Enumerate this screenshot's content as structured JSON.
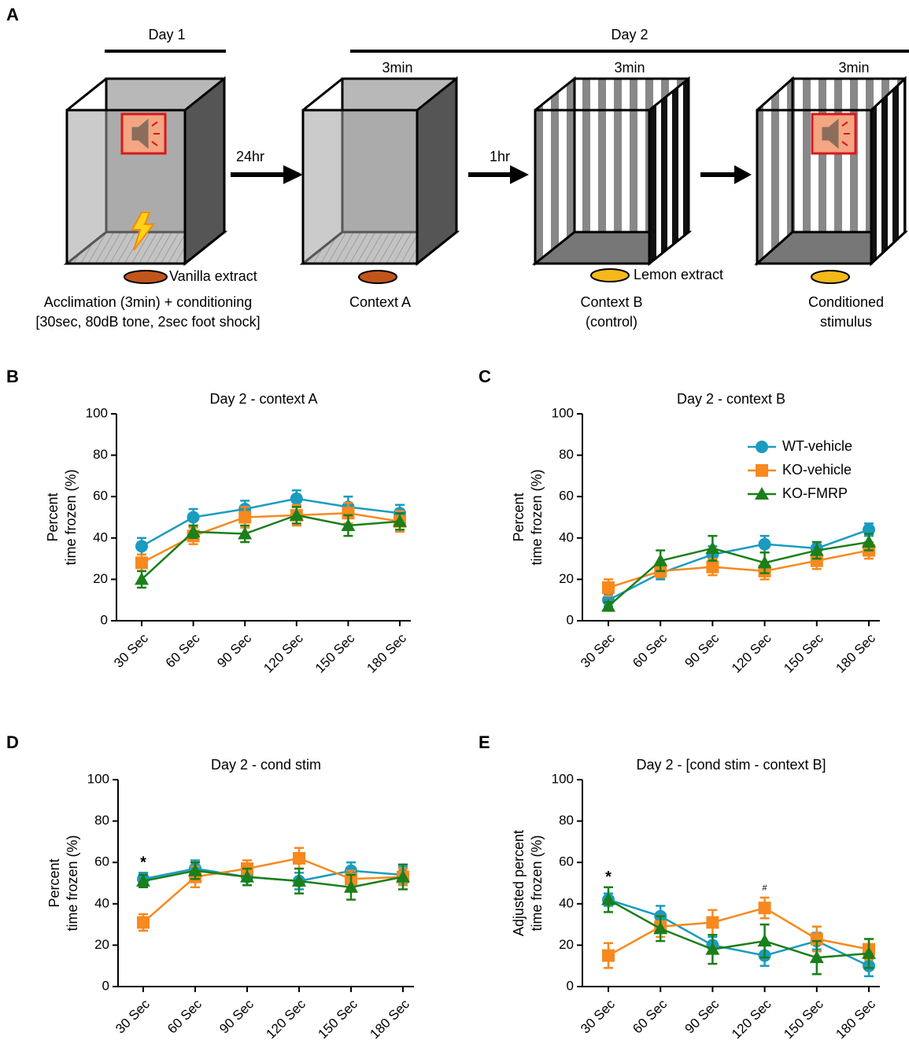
{
  "diagram": {
    "panel": "A",
    "day1": "Day 1",
    "day2": "Day 2",
    "durations": [
      "3min",
      "3min",
      "3min"
    ],
    "intervals": [
      "24hr",
      "1hr"
    ],
    "odors": [
      "Vanilla extract",
      "Lemon extract"
    ],
    "captions": [
      [
        "Acclimation (3min) + conditioning",
        "[30sec, 80dB tone, 2sec foot shock]"
      ],
      [
        "Context A"
      ],
      [
        "Context B",
        "(control)"
      ],
      [
        "Conditioned",
        "stimulus"
      ]
    ]
  },
  "chart_data": [
    {
      "panel": "B",
      "type": "line",
      "title": "Day 2 - context A",
      "ylabel": [
        "Percent",
        "time frozen (%)"
      ],
      "categories": [
        "30 Sec",
        "60 Sec",
        "90 Sec",
        "120 Sec",
        "150 Sec",
        "180 Sec"
      ],
      "ylim": [
        0,
        100
      ],
      "yticks": [
        0,
        20,
        40,
        60,
        80,
        100
      ],
      "series": [
        {
          "color": "#1a9bc0",
          "marker": "circle",
          "values": [
            36,
            50,
            54,
            59,
            55,
            52
          ],
          "errors": [
            4,
            4,
            4,
            4,
            5,
            4
          ]
        },
        {
          "color": "#f7891e",
          "marker": "square",
          "values": [
            28,
            41,
            50,
            51,
            52,
            48
          ],
          "errors": [
            4,
            4,
            5,
            5,
            5,
            5
          ]
        },
        {
          "color": "#1b7f1b",
          "marker": "triangle",
          "values": [
            20,
            43,
            42,
            51,
            46,
            48
          ],
          "errors": [
            4,
            3,
            4,
            4,
            5,
            4
          ]
        }
      ]
    },
    {
      "panel": "C",
      "type": "line",
      "title": "Day 2 - context B",
      "ylabel": [
        "Percent",
        "time frozen (%)"
      ],
      "categories": [
        "30 Sec",
        "60 Sec",
        "90 Sec",
        "120 Sec",
        "150 Sec",
        "180 Sec"
      ],
      "ylim": [
        0,
        100
      ],
      "yticks": [
        0,
        20,
        40,
        60,
        80,
        100
      ],
      "legend": "upper right",
      "series": [
        {
          "name": "WT-vehicle",
          "color": "#1a9bc0",
          "marker": "circle",
          "values": [
            10,
            23,
            32,
            37,
            35,
            44
          ],
          "errors": [
            3,
            3,
            4,
            4,
            3,
            3
          ]
        },
        {
          "name": "KO-vehicle",
          "color": "#f7891e",
          "marker": "square",
          "values": [
            16,
            24,
            26,
            24,
            29,
            34
          ],
          "errors": [
            4,
            3,
            4,
            4,
            4,
            4
          ]
        },
        {
          "name": "KO-FMRP",
          "color": "#1b7f1b",
          "marker": "triangle",
          "values": [
            7,
            29,
            35,
            28,
            34,
            38
          ],
          "errors": [
            2,
            5,
            6,
            5,
            4,
            4
          ]
        }
      ]
    },
    {
      "panel": "D",
      "type": "line",
      "title": "Day 2 - cond stim",
      "ylabel": [
        "Percent",
        "time frozen (%)"
      ],
      "categories": [
        "30 Sec",
        "60 Sec",
        "90 Sec",
        "120 Sec",
        "150 Sec",
        "180 Sec"
      ],
      "ylim": [
        0,
        100
      ],
      "yticks": [
        0,
        20,
        40,
        60,
        80,
        100
      ],
      "annotations": [
        {
          "text": "*",
          "at": "30 Sec"
        }
      ],
      "series": [
        {
          "color": "#1a9bc0",
          "marker": "circle",
          "values": [
            52,
            57,
            53,
            51,
            56,
            54
          ],
          "errors": [
            3,
            4,
            4,
            4,
            4,
            4
          ]
        },
        {
          "color": "#f7891e",
          "marker": "square",
          "values": [
            31,
            53,
            57,
            62,
            52,
            53
          ],
          "errors": [
            4,
            5,
            4,
            5,
            4,
            4
          ]
        },
        {
          "color": "#1b7f1b",
          "marker": "triangle",
          "values": [
            51,
            56,
            53,
            51,
            48,
            53
          ],
          "errors": [
            3,
            4,
            4,
            6,
            6,
            6
          ]
        }
      ]
    },
    {
      "panel": "E",
      "type": "line",
      "title": "Day 2 - [cond stim - context B]",
      "ylabel": [
        "Adjusted percent",
        "time frozen (%)"
      ],
      "categories": [
        "30 Sec",
        "60 Sec",
        "90 Sec",
        "120 Sec",
        "150 Sec",
        "180 Sec"
      ],
      "ylim": [
        0,
        100
      ],
      "yticks": [
        0,
        20,
        40,
        60,
        80,
        100
      ],
      "annotations": [
        {
          "text": "*",
          "at": "30 Sec"
        },
        {
          "text": "#",
          "at": "120 Sec"
        }
      ],
      "series": [
        {
          "color": "#1a9bc0",
          "marker": "circle",
          "values": [
            42,
            34,
            20,
            15,
            22,
            10
          ],
          "errors": [
            3,
            5,
            4,
            5,
            4,
            5
          ]
        },
        {
          "color": "#f7891e",
          "marker": "square",
          "values": [
            15,
            29,
            31,
            38,
            23,
            18
          ],
          "errors": [
            6,
            5,
            6,
            5,
            6,
            5
          ]
        },
        {
          "color": "#1b7f1b",
          "marker": "triangle",
          "values": [
            42,
            28,
            18,
            22,
            14,
            16
          ],
          "errors": [
            6,
            6,
            7,
            8,
            8,
            7
          ]
        }
      ]
    }
  ]
}
